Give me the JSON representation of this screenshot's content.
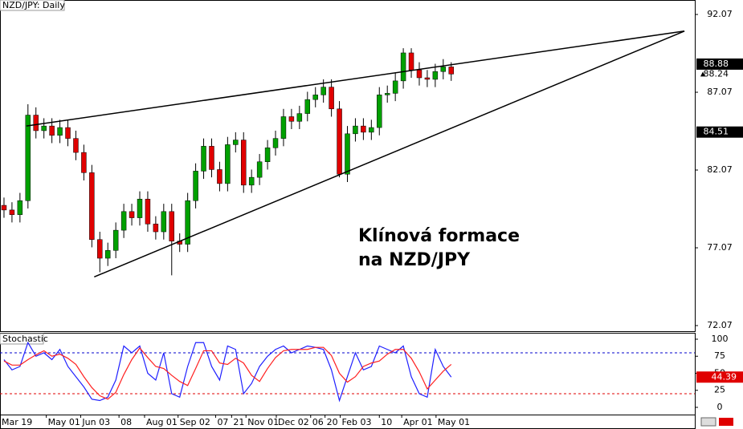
{
  "chart_data": [
    {
      "type": "candlestick",
      "title": "NZD/JPY: Daily",
      "xlim": [
        0,
        87
      ],
      "ylim": [
        71.71,
        93.0
      ],
      "yticks": [
        92.07,
        87.07,
        82.07,
        77.07,
        72.07
      ],
      "up_color": "#00a000",
      "down_color": "#e00000",
      "open": [
        79.8,
        79.5,
        79.2,
        80.1,
        85.6,
        84.6,
        84.9,
        84.3,
        84.8,
        84.1,
        83.2,
        81.9,
        77.6,
        76.4,
        76.9,
        78.2,
        79.4,
        79.0,
        80.2,
        78.6,
        78.1,
        79.4,
        77.5,
        77.3,
        80.1,
        82.0,
        83.6,
        82.1,
        81.2,
        83.7,
        84.0,
        81.1,
        81.6,
        82.6,
        83.5,
        84.1,
        85.5,
        85.2,
        85.7,
        86.6,
        86.9,
        87.4,
        86.0,
        81.8,
        84.4,
        84.9,
        84.5,
        84.8,
        86.9,
        87.0,
        87.8,
        89.6,
        88.5,
        88.0,
        87.9,
        88.4,
        88.7
      ],
      "high": [
        80.3,
        80.0,
        80.6,
        86.3,
        86.1,
        85.4,
        85.4,
        85.3,
        85.3,
        84.6,
        83.7,
        82.4,
        78.1,
        77.4,
        78.7,
        79.9,
        79.9,
        80.7,
        80.7,
        79.1,
        79.9,
        79.9,
        78.0,
        80.6,
        82.5,
        84.1,
        84.1,
        82.6,
        84.2,
        84.5,
        84.5,
        82.1,
        83.1,
        84.0,
        84.6,
        86.0,
        86.0,
        86.2,
        87.1,
        87.4,
        87.9,
        87.9,
        86.5,
        84.9,
        85.4,
        85.4,
        85.3,
        87.4,
        87.5,
        88.3,
        89.9,
        89.9,
        89.0,
        88.5,
        88.9,
        89.2,
        89.0
      ],
      "low": [
        79.0,
        78.7,
        78.7,
        79.6,
        84.1,
        84.1,
        83.8,
        83.8,
        83.6,
        82.7,
        81.4,
        77.1,
        75.5,
        75.9,
        76.4,
        77.7,
        78.5,
        78.5,
        78.1,
        77.6,
        77.6,
        75.3,
        76.8,
        76.8,
        79.6,
        81.5,
        81.6,
        80.7,
        80.7,
        83.2,
        80.6,
        80.6,
        81.1,
        82.1,
        83.0,
        83.6,
        84.7,
        84.7,
        85.2,
        86.1,
        86.4,
        85.5,
        81.6,
        81.3,
        83.9,
        84.0,
        84.0,
        84.3,
        86.4,
        86.5,
        87.3,
        88.0,
        87.5,
        87.4,
        87.4,
        87.9,
        87.8
      ],
      "close": [
        79.5,
        79.2,
        80.1,
        85.6,
        84.6,
        84.9,
        84.3,
        84.8,
        84.1,
        83.2,
        81.9,
        77.6,
        76.4,
        76.9,
        78.2,
        79.4,
        79.0,
        80.2,
        78.6,
        78.1,
        79.4,
        77.5,
        77.3,
        80.1,
        82.0,
        83.6,
        82.1,
        81.2,
        83.7,
        84.0,
        81.1,
        81.6,
        82.6,
        83.5,
        84.1,
        85.5,
        85.2,
        85.7,
        86.6,
        86.9,
        87.4,
        86.0,
        81.8,
        84.4,
        84.9,
        84.5,
        84.8,
        86.9,
        87.0,
        87.8,
        89.6,
        88.5,
        88.0,
        87.9,
        88.4,
        88.7,
        88.24
      ],
      "trendlines": [
        {
          "points": [
            [
              3.3,
              84.9
            ],
            [
              85.7,
              91.0
            ]
          ]
        },
        {
          "points": [
            [
              11.8,
              75.2
            ],
            [
              85.7,
              91.0
            ]
          ]
        }
      ],
      "price_labels": [
        {
          "value": 88.88,
          "boxed": true
        },
        {
          "value": 88.24,
          "boxed": false
        },
        {
          "value": 84.51,
          "boxed": true
        }
      ],
      "annotation": [
        "Klínová formace",
        "na NZD/JPY"
      ]
    },
    {
      "type": "line",
      "title": "Stochastic",
      "xlim": [
        0,
        87
      ],
      "ylim": [
        -10.6,
        109.4
      ],
      "yticks": [
        100,
        75,
        50,
        25,
        0
      ],
      "levels": [
        {
          "value": 80,
          "color": "#0000cc"
        },
        {
          "value": 20,
          "color": "#e00000"
        }
      ],
      "series": [
        {
          "color": "#2020ff",
          "values": [
            70,
            55,
            60,
            95,
            75,
            80,
            70,
            85,
            60,
            45,
            30,
            12,
            10,
            15,
            40,
            90,
            80,
            90,
            50,
            40,
            80,
            20,
            15,
            60,
            95,
            95,
            60,
            40,
            90,
            85,
            20,
            35,
            60,
            75,
            85,
            90,
            80,
            85,
            90,
            88,
            85,
            55,
            10,
            45,
            80,
            55,
            60,
            90,
            85,
            80,
            90,
            45,
            20,
            15,
            85,
            60,
            44.39
          ]
        },
        {
          "color": "#ff2020",
          "values": [
            68,
            62,
            62,
            70,
            77,
            83,
            75,
            78,
            72,
            63,
            45,
            29,
            17,
            12,
            22,
            48,
            70,
            87,
            73,
            60,
            57,
            47,
            38,
            32,
            57,
            83,
            83,
            65,
            63,
            72,
            65,
            47,
            38,
            57,
            73,
            83,
            85,
            85,
            85,
            88,
            88,
            76,
            50,
            37,
            45,
            60,
            65,
            68,
            78,
            85,
            85,
            72,
            52,
            27,
            40,
            53,
            63
          ]
        }
      ],
      "last_value_color": "#e00000",
      "xticks": [
        {
          "value": 0,
          "label": "Mar 19"
        },
        {
          "value": 5.8,
          "label": "May 01"
        },
        {
          "value": 10.1,
          "label": "Jun 03"
        },
        {
          "value": 14.9,
          "label": "08"
        },
        {
          "value": 18.1,
          "label": "Aug 01"
        },
        {
          "value": 22.3,
          "label": "Sep 02"
        },
        {
          "value": 27.0,
          "label": "07"
        },
        {
          "value": 29.0,
          "label": "21"
        },
        {
          "value": 30.8,
          "label": "Nov 01"
        },
        {
          "value": 34.6,
          "label": "Dec 02"
        },
        {
          "value": 38.9,
          "label": "06"
        },
        {
          "value": 40.7,
          "label": "20"
        },
        {
          "value": 42.6,
          "label": "Feb 03"
        },
        {
          "value": 47.5,
          "label": "10"
        },
        {
          "value": 50.3,
          "label": "Apr 01"
        },
        {
          "value": 54.6,
          "label": "May 01"
        }
      ]
    }
  ]
}
